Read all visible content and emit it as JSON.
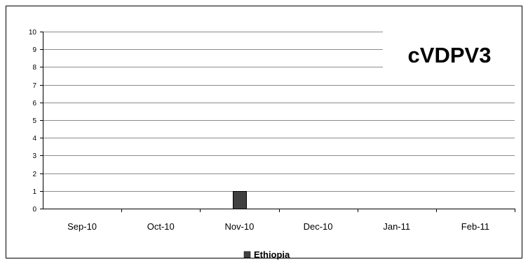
{
  "chart_data": {
    "type": "bar",
    "title": "cVDPV3",
    "categories": [
      "Sep-10",
      "Oct-10",
      "Nov-10",
      "Dec-10",
      "Jan-11",
      "Feb-11"
    ],
    "series": [
      {
        "name": "Ethiopia",
        "values": [
          0,
          0,
          1,
          0,
          0,
          0
        ],
        "color": "#404040"
      }
    ],
    "ylim": [
      0,
      10
    ],
    "yticks": [
      0,
      1,
      2,
      3,
      4,
      5,
      6,
      7,
      8,
      9,
      10
    ],
    "grid": true,
    "legend_position": "bottom-center",
    "xlabel": "",
    "ylabel": ""
  }
}
